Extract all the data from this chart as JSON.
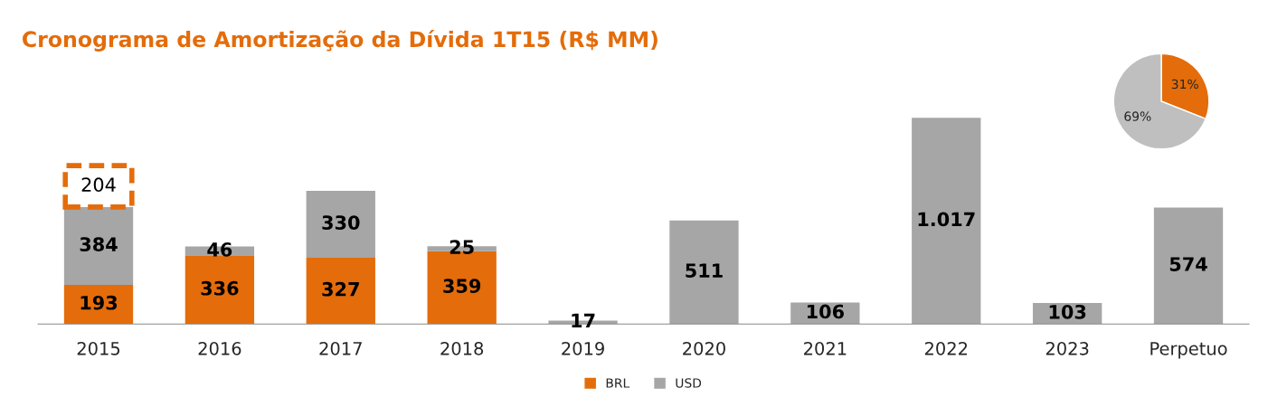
{
  "chart_data": [
    {
      "type": "bar",
      "title": "Cronograma de Amortização da Dívida 1T15 (R$ MM)",
      "stacked": true,
      "legend": "bottom",
      "grid": false,
      "categories": [
        "2015",
        "2016",
        "2017",
        "2018",
        "2019",
        "2020",
        "2021",
        "2022",
        "2023",
        "Perpetuo"
      ],
      "series": [
        {
          "name": "BRL",
          "color": "#e46c0a",
          "values": [
            193,
            336,
            327,
            359,
            null,
            null,
            null,
            null,
            null,
            null
          ],
          "value_labels": [
            "193",
            "336",
            "327",
            "359",
            null,
            null,
            null,
            null,
            null,
            null
          ]
        },
        {
          "name": "USD",
          "color": "#a6a6a6",
          "values": [
            384,
            46,
            330,
            25,
            17,
            511,
            106,
            1017,
            103,
            574
          ],
          "value_labels": [
            "384",
            "46",
            "330",
            "25",
            "17",
            "511",
            "106",
            "1.017",
            "103",
            "574"
          ]
        },
        {
          "color": "#e46c0a",
          "line_style": "dashed",
          "values": [
            204,
            null,
            null,
            null,
            null,
            null,
            null,
            null,
            null,
            null
          ],
          "value_labels": [
            "204",
            null,
            null,
            null,
            null,
            null,
            null,
            null,
            null,
            null
          ]
        }
      ]
    },
    {
      "type": "pie",
      "categories": [
        null,
        null
      ],
      "values": [
        31,
        69
      ],
      "colors": [
        "#e46c0a",
        "#bfbfbf"
      ],
      "value_labels": [
        "31%",
        "69%"
      ]
    }
  ]
}
